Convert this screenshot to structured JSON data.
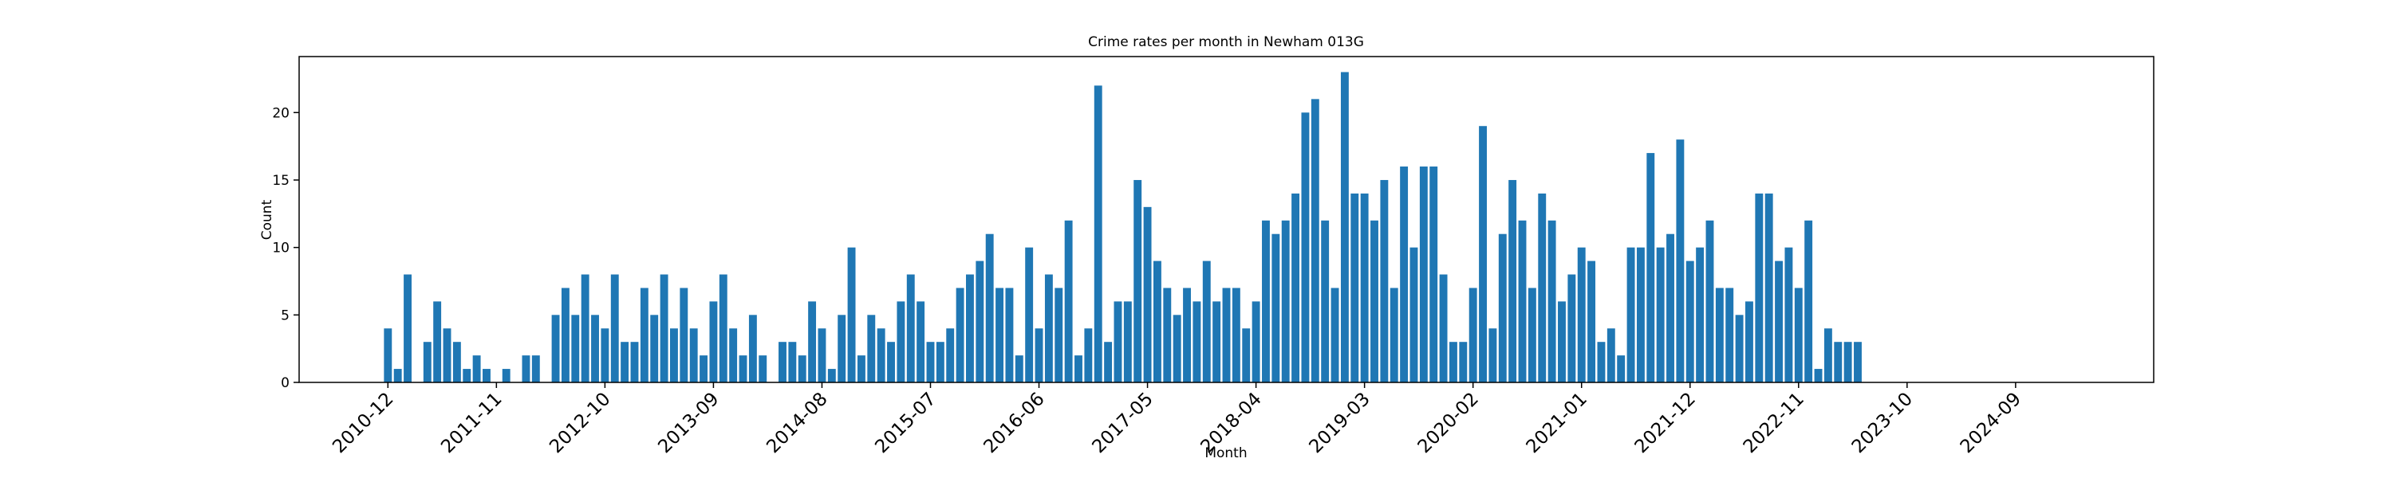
{
  "chart_data": {
    "type": "bar",
    "title": "Crime rates per month in Newham 013G",
    "x_label": "Month",
    "y_label": "Count",
    "color": "#1f77b4",
    "x": [
      "2010-12",
      "2011-01",
      "2011-02",
      "2011-04",
      "2011-05",
      "2011-06",
      "2011-07",
      "2011-08",
      "2011-09",
      "2011-10",
      "2011-12",
      "2012-02",
      "2012-03",
      "2012-05",
      "2012-06",
      "2012-07",
      "2012-08",
      "2012-09",
      "2012-10",
      "2012-11",
      "2012-12",
      "2013-01",
      "2013-02",
      "2013-03",
      "2013-04",
      "2013-05",
      "2013-06",
      "2013-07",
      "2013-08",
      "2013-09",
      "2013-10",
      "2013-11",
      "2013-12",
      "2014-01",
      "2014-02",
      "2014-04",
      "2014-05",
      "2014-06",
      "2014-07",
      "2014-08",
      "2014-09",
      "2014-10",
      "2014-11",
      "2014-12",
      "2015-01",
      "2015-02",
      "2015-03",
      "2015-04",
      "2015-05",
      "2015-06",
      "2015-07",
      "2015-08",
      "2015-09",
      "2015-10",
      "2015-11",
      "2015-12",
      "2016-01",
      "2016-02",
      "2016-03",
      "2016-04",
      "2016-05",
      "2016-06",
      "2016-07",
      "2016-08",
      "2016-09",
      "2016-10",
      "2016-11",
      "2016-12",
      "2017-01",
      "2017-02",
      "2017-03",
      "2017-04",
      "2017-05",
      "2017-06",
      "2017-07",
      "2017-08",
      "2017-09",
      "2017-10",
      "2017-11",
      "2017-12",
      "2018-01",
      "2018-02",
      "2018-03",
      "2018-04",
      "2018-05",
      "2018-06",
      "2018-07",
      "2018-08",
      "2018-09",
      "2018-10",
      "2018-11",
      "2018-12",
      "2019-01",
      "2019-02",
      "2019-03",
      "2019-04",
      "2019-05",
      "2019-06",
      "2019-07",
      "2019-08",
      "2019-09",
      "2019-10",
      "2019-11",
      "2019-12",
      "2020-01",
      "2020-02",
      "2020-03",
      "2020-04",
      "2020-05",
      "2020-06",
      "2020-07",
      "2020-08",
      "2020-09",
      "2020-10",
      "2020-11",
      "2020-12",
      "2021-01",
      "2021-02",
      "2021-03",
      "2021-04",
      "2021-05",
      "2021-06",
      "2021-07",
      "2021-08",
      "2021-09",
      "2021-10",
      "2021-11",
      "2021-12",
      "2022-01",
      "2022-02",
      "2022-03",
      "2022-04",
      "2022-05",
      "2022-06",
      "2022-07",
      "2022-08",
      "2022-09",
      "2022-10",
      "2022-11",
      "2022-12",
      "2023-01",
      "2023-02",
      "2023-03",
      "2023-04",
      "2023-05"
    ],
    "values": [
      4,
      1,
      8,
      3,
      6,
      4,
      3,
      1,
      2,
      1,
      1,
      2,
      2,
      5,
      7,
      5,
      8,
      5,
      4,
      8,
      3,
      3,
      7,
      5,
      8,
      4,
      7,
      4,
      2,
      6,
      8,
      4,
      2,
      5,
      2,
      3,
      3,
      2,
      6,
      4,
      1,
      5,
      10,
      2,
      5,
      4,
      3,
      6,
      8,
      6,
      3,
      3,
      4,
      7,
      8,
      9,
      11,
      7,
      7,
      2,
      10,
      4,
      8,
      7,
      12,
      2,
      4,
      22,
      3,
      6,
      6,
      15,
      13,
      9,
      7,
      5,
      7,
      6,
      9,
      6,
      7,
      7,
      4,
      6,
      12,
      11,
      12,
      14,
      20,
      21,
      12,
      7,
      23,
      14,
      14,
      12,
      15,
      7,
      16,
      10,
      16,
      16,
      8,
      3,
      3,
      7,
      19,
      4,
      11,
      15,
      12,
      7,
      14,
      12,
      6,
      8,
      10,
      9,
      3,
      4,
      2,
      10,
      10,
      17,
      10,
      11,
      18,
      9,
      10,
      12,
      7,
      7,
      5,
      6,
      14,
      14,
      9,
      10,
      7,
      12,
      1,
      4,
      3,
      3,
      3
    ],
    "xlim": [
      "2010-03",
      "2025-11"
    ],
    "xticks": [
      "2010-12",
      "2011-11",
      "2012-10",
      "2013-09",
      "2014-08",
      "2015-07",
      "2016-06",
      "2017-05",
      "2018-04",
      "2019-03",
      "2020-02",
      "2021-01",
      "2021-12",
      "2022-11",
      "2023-10",
      "2024-09"
    ],
    "ylim": [
      0,
      24.15
    ],
    "yticks": [
      0,
      5,
      10,
      15,
      20
    ]
  }
}
